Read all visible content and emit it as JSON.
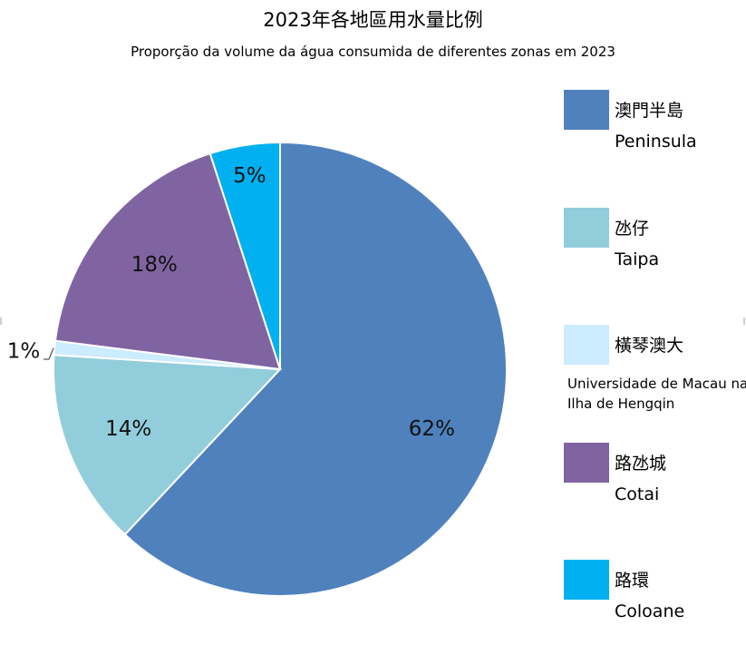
{
  "chart_data": {
    "type": "pie",
    "title": "2023年各地區用水量比例",
    "subtitle": "Proporção da volume da água consumida de diferentes zonas em 2023",
    "slices": [
      {
        "label_zh": "澳門半島",
        "label_pt": "Peninsula",
        "value": 62,
        "label": "62%",
        "color": "#4F81BD"
      },
      {
        "label_zh": "氹仔",
        "label_pt": "Taipa",
        "value": 14,
        "label": "14%",
        "color": "#92CDDC"
      },
      {
        "label_zh": "橫琴澳大",
        "label_pt": "Universidade de Macau na Ilha de Hengqin",
        "value": 1,
        "label": "1%",
        "color": "#CCECFF"
      },
      {
        "label_zh": "路氹城",
        "label_pt": "Cotai",
        "value": 18,
        "label": "18%",
        "color": "#8064A2"
      },
      {
        "label_zh": "路環",
        "label_pt": "Coloane",
        "value": 5,
        "label": "5%",
        "color": "#00B0F0"
      }
    ],
    "legend_position": "right"
  }
}
